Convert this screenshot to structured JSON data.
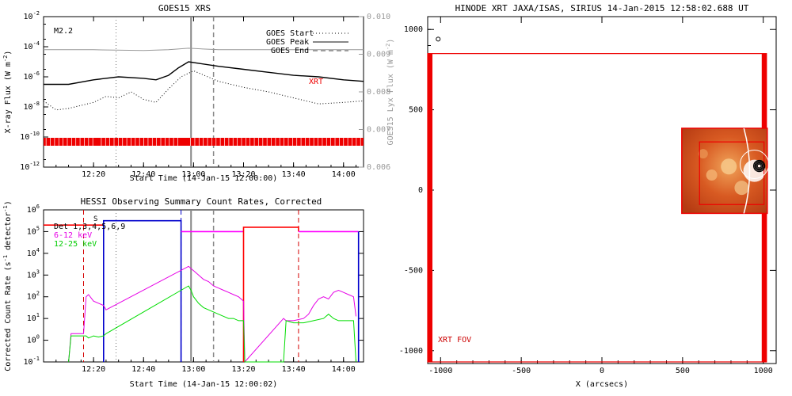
{
  "chart_data": [
    {
      "type": "line",
      "title": "GOES15 XRS",
      "xlabel": "Start Time (14-Jan-15 12:00:00)",
      "ylabel": "X-ray Flux (W m",
      "ylabel_unit_exp": "-2",
      "ylabel_right": "GOES15 Lyx Flux (W m",
      "ylim_log": [
        -12,
        -2
      ],
      "ylim_right": [
        0.006,
        0.01
      ],
      "xlim_minutes": [
        0,
        128
      ],
      "x_ticks": [
        "12:20",
        "12:40",
        "13:00",
        "13:20",
        "13:40",
        "14:00"
      ],
      "x_tick_minutes": [
        20,
        40,
        60,
        80,
        100,
        120
      ],
      "y_ticks_log": [
        -12,
        -10,
        -8,
        -6,
        -4,
        -2
      ],
      "y_tick_labels_right": [
        "0.006",
        "0.007",
        "0.008",
        "0.009",
        "0.010"
      ],
      "flare_class": "M2.2",
      "legend": [
        "GOES Start",
        "GOES Peak",
        "GOES End"
      ],
      "xrt_label": "XRT",
      "markers_minutes": {
        "start": 29,
        "peak": 59,
        "end": 68
      },
      "series": [
        {
          "name": "Lyx",
          "color": "#999999",
          "x": [
            0,
            20,
            40,
            50,
            58,
            70,
            90,
            110,
            128
          ],
          "y": [
            -4.2,
            -4.2,
            -4.25,
            -4.2,
            -4.1,
            -4.2,
            -4.2,
            -4.2,
            -4.2
          ]
        },
        {
          "color": "#000000",
          "x": [
            0,
            10,
            20,
            30,
            40,
            45,
            50,
            54,
            58,
            62,
            70,
            80,
            90,
            100,
            110,
            120,
            128
          ],
          "y": [
            -6.5,
            -6.5,
            -6.2,
            -6.0,
            -6.1,
            -6.2,
            -5.9,
            -5.4,
            -5.0,
            -5.1,
            -5.3,
            -5.5,
            -5.7,
            -5.9,
            -6.0,
            -6.2,
            -6.3
          ]
        },
        {
          "color": "#000000",
          "dotted": true,
          "x": [
            0,
            5,
            10,
            20,
            25,
            30,
            35,
            40,
            45,
            50,
            55,
            60,
            70,
            80,
            90,
            100,
            110,
            120,
            128
          ],
          "y": [
            -7.6,
            -8.2,
            -8.1,
            -7.7,
            -7.3,
            -7.4,
            -7.0,
            -7.5,
            -7.7,
            -6.8,
            -6.0,
            -5.6,
            -6.3,
            -6.7,
            -7.0,
            -7.4,
            -7.8,
            -7.7,
            -7.6
          ]
        }
      ]
    },
    {
      "type": "line",
      "title": "HESSI Observing Summary Count Rates, Corrected",
      "xlabel": "Start Time (14-Jan-15 12:00:02)",
      "ylabel": "Corrected Count Rate (s",
      "ylabel_mid": " detector",
      "ylabel_exp": "-1",
      "ylim_log": [
        -1,
        6
      ],
      "xlim_minutes": [
        0,
        128
      ],
      "x_ticks": [
        "12:20",
        "12:40",
        "13:00",
        "13:20",
        "13:40",
        "14:00"
      ],
      "x_tick_minutes": [
        20,
        40,
        60,
        80,
        100,
        120
      ],
      "y_ticks_log": [
        -1,
        0,
        1,
        2,
        3,
        4,
        5,
        6
      ],
      "legend": [
        {
          "label": "Det 1,3,4,5,6,9",
          "color": "#000000"
        },
        {
          "label": "6-12 keV",
          "color": "#e600e6"
        },
        {
          "label": "12-25 keV",
          "color": "#00dd00"
        }
      ],
      "small_label": "S",
      "gray_markers_minutes": {
        "start": 29,
        "peak": 59,
        "end": 68
      },
      "dashed_markers": [
        {
          "x": 16,
          "color": "#d40000"
        },
        {
          "x": 55,
          "color": "#0000cc"
        },
        {
          "x": 102,
          "color": "#d40000"
        }
      ],
      "series": [
        {
          "name": "Det 1,3,4,5,6,9",
          "color": "#ff0000",
          "step": true,
          "x": [
            0,
            16,
            16,
            24
          ],
          "y": [
            5.3,
            5.3,
            5.3,
            5.3
          ]
        },
        {
          "color": "#0000cc",
          "step": true,
          "x": [
            24,
            24,
            55,
            55
          ],
          "y": [
            -1,
            5.5,
            5.5,
            -1
          ]
        },
        {
          "color": "#ff00ff",
          "step": true,
          "x": [
            55,
            80
          ],
          "y": [
            5.0,
            5.0
          ]
        },
        {
          "color": "#ff0000",
          "step": true,
          "x": [
            80,
            80,
            102,
            102
          ],
          "y": [
            -1,
            5.2,
            5.2,
            5.0
          ]
        },
        {
          "color": "#ff00ff",
          "step": true,
          "x": [
            102,
            126
          ],
          "y": [
            5.0,
            5.0
          ]
        },
        {
          "color": "#0000cc",
          "step": true,
          "x": [
            126,
            126
          ],
          "y": [
            5.0,
            -1
          ]
        },
        {
          "name": "6-12 keV",
          "color": "#e600e6",
          "x": [
            10,
            11,
            14,
            16,
            17,
            18,
            20,
            22,
            24,
            25,
            58,
            59,
            60,
            62,
            64,
            66,
            68,
            70,
            72,
            74,
            76,
            78,
            80,
            80.5,
            96,
            97,
            100,
            104,
            106,
            108,
            110,
            112,
            114,
            116,
            118,
            120,
            122,
            124,
            125
          ],
          "y": [
            -1,
            0.3,
            0.3,
            0.3,
            2.0,
            2.1,
            1.8,
            1.7,
            1.6,
            1.4,
            3.4,
            3.3,
            3.2,
            3.0,
            2.8,
            2.7,
            2.5,
            2.4,
            2.3,
            2.2,
            2.1,
            2.0,
            1.8,
            -1,
            1.0,
            0.9,
            0.9,
            1.0,
            1.2,
            1.6,
            1.9,
            2.0,
            1.9,
            2.2,
            2.3,
            2.2,
            2.1,
            2.0,
            1.1
          ]
        },
        {
          "name": "12-25 keV",
          "color": "#00dd00",
          "x": [
            10,
            11,
            14,
            16,
            17,
            18,
            20,
            22,
            24,
            25,
            58,
            59,
            60,
            62,
            64,
            66,
            68,
            70,
            72,
            74,
            76,
            78,
            80,
            80.5,
            96,
            97,
            100,
            104,
            108,
            112,
            114,
            116,
            118,
            120,
            124,
            125
          ],
          "y": [
            -1,
            0.2,
            0.2,
            0.2,
            0.2,
            0.1,
            0.2,
            0.15,
            0.2,
            0.3,
            2.5,
            2.3,
            2.0,
            1.7,
            1.5,
            1.4,
            1.3,
            1.2,
            1.1,
            1.0,
            1.0,
            0.9,
            0.9,
            -1,
            -1,
            0.9,
            0.8,
            0.8,
            0.9,
            1.0,
            1.2,
            1.0,
            0.9,
            0.9,
            0.9,
            -1
          ]
        }
      ]
    },
    {
      "type": "scatter",
      "title": "HINODE XRT JAXA/ISAS, SIRIUS 14-Jan-2015 12:58:02.688 UT",
      "xlabel": "X (arcsecs)",
      "xlim": [
        -1080,
        1080
      ],
      "ylim": [
        -1080,
        1080
      ],
      "x_ticks": [
        -1000,
        -500,
        0,
        500,
        1000
      ],
      "y_ticks": [
        -1000,
        -500,
        0,
        500,
        1000
      ],
      "fov_label": "XRT FOV",
      "fov_box": {
        "x": [
          -1080,
          1020
        ],
        "y": [
          -1070,
          850
        ]
      },
      "image_box": {
        "x": [
          495,
          1025
        ],
        "y": [
          -145,
          385
        ]
      },
      "inner_box": {
        "x": [
          605,
          1005
        ],
        "y": [
          -90,
          300
        ]
      },
      "contour_center": [
        975,
        150
      ],
      "small_circle": [
        -1015,
        940
      ]
    }
  ]
}
